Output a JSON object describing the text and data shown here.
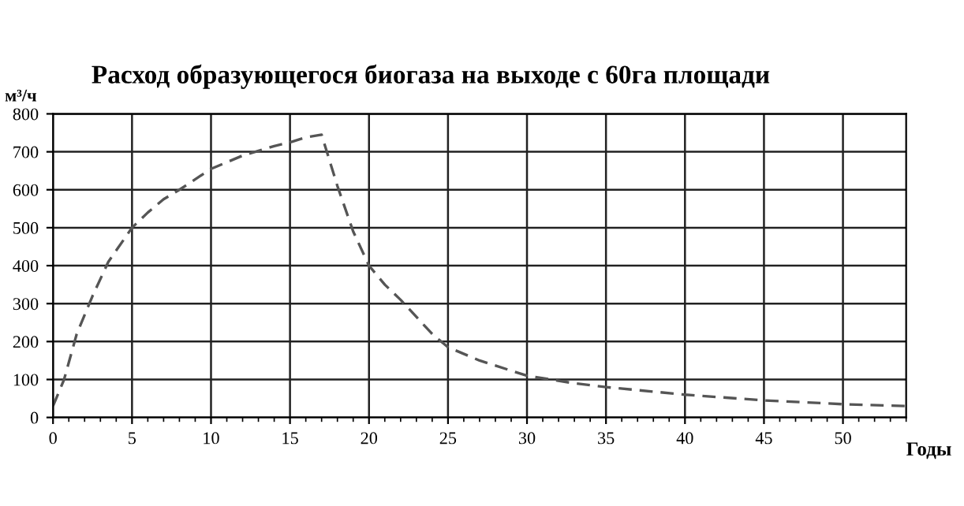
{
  "chart_data": {
    "type": "line",
    "title": "Расход образующегося биогаза на выходе с 60га площади",
    "xlabel": "Годы",
    "ylabel": "м³/ч",
    "series": [
      {
        "color": "#555555",
        "x": [
          0,
          0.7,
          1.5,
          2.5,
          3.5,
          5,
          6,
          7,
          8,
          10,
          12,
          14,
          15,
          16,
          17,
          18,
          19,
          20,
          21,
          22,
          24,
          25,
          27,
          30,
          33,
          35,
          40,
          45,
          50,
          54
        ],
        "values": [
          30,
          100,
          220,
          320,
          410,
          500,
          540,
          575,
          600,
          655,
          690,
          715,
          725,
          738,
          745,
          610,
          490,
          400,
          350,
          310,
          220,
          185,
          150,
          110,
          90,
          80,
          60,
          45,
          35,
          30
        ]
      }
    ],
    "xlim": [
      0,
      54
    ],
    "ylim": [
      0,
      800
    ],
    "xticks": [
      0,
      5,
      10,
      15,
      20,
      25,
      30,
      35,
      40,
      45,
      50
    ],
    "yticks": [
      0,
      100,
      200,
      300,
      400,
      500,
      600,
      700,
      800
    ],
    "grid": true,
    "line_style": "dashed",
    "marker": "none"
  }
}
